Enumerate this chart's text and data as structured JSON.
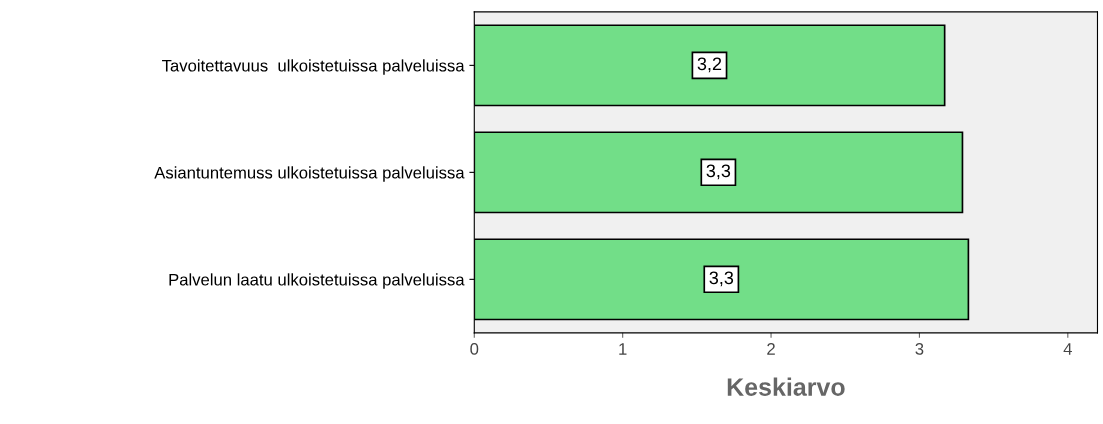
{
  "chart_data": {
    "type": "bar",
    "orientation": "horizontal",
    "xlabel": "Keskiarvo",
    "categories": [
      "Tavoitettavuus  ulkoistetuissa palveluissa",
      "Asiantuntemuss ulkoistetuissa palveluissa",
      "Palvelun laatu ulkoistetuissa palveluissa"
    ],
    "values": [
      3.17,
      3.29,
      3.33
    ],
    "value_labels": [
      "3,2",
      "3,3",
      "3,3"
    ],
    "color": "#72de88",
    "xlim": [
      0,
      4.2
    ],
    "xticks": [
      0,
      1,
      2,
      3,
      4
    ],
    "grid": false,
    "legend": false
  }
}
